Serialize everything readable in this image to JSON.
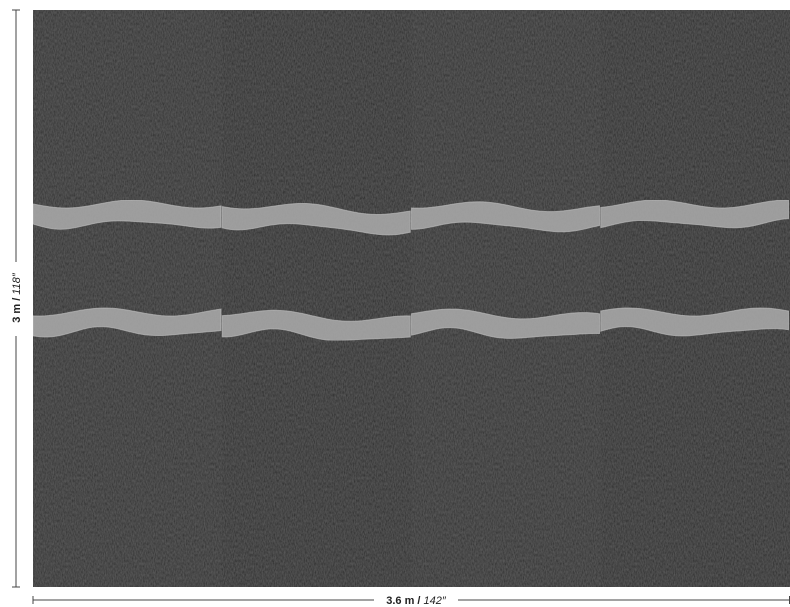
{
  "dimensions": {
    "height": {
      "metric": "3 m /",
      "imperial": "118″"
    },
    "width": {
      "metric": "3.6 m /",
      "imperial": "142″"
    }
  }
}
